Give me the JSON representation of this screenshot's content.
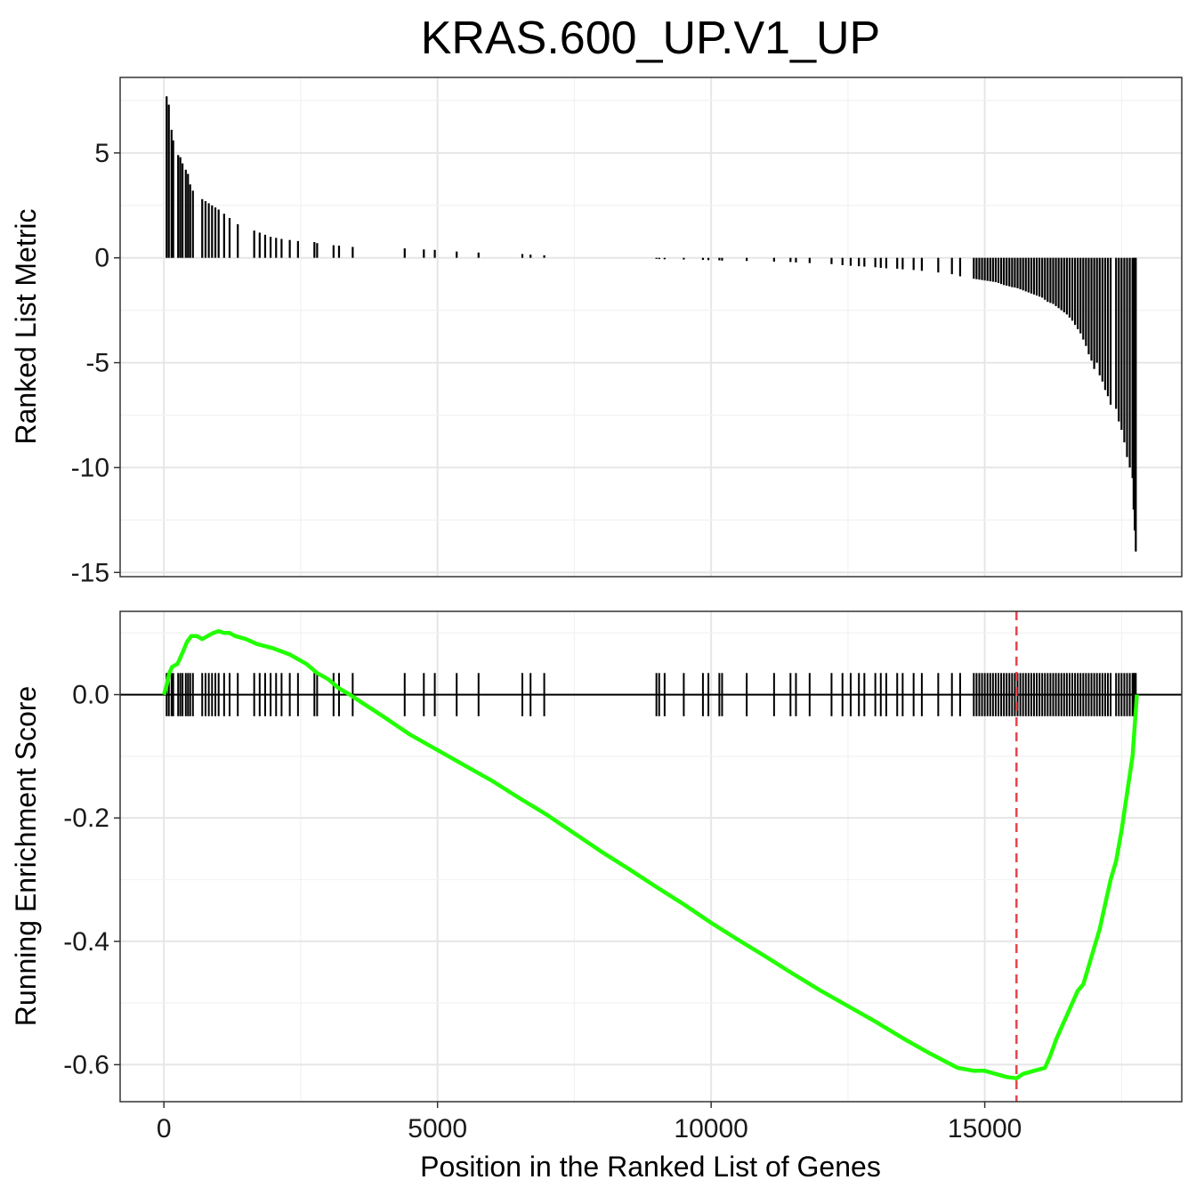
{
  "chart_data": {
    "type": "line",
    "title": "KRAS.600_UP.V1_UP",
    "xlabel": "Position in the Ranked List of Genes",
    "x_ticks": [
      0,
      5000,
      10000,
      15000
    ],
    "xlim": [
      -800,
      18600
    ],
    "grid": true,
    "panels": [
      {
        "name": "ranked_metric",
        "type": "bar",
        "ylabel": "Ranked List Metric",
        "ylim": [
          -15.2,
          8.6
        ],
        "y_ticks": [
          5,
          0,
          -5,
          -10,
          -15
        ],
        "bars": [
          [
            50,
            7.7
          ],
          [
            90,
            7.3
          ],
          [
            140,
            6.1
          ],
          [
            170,
            5.6
          ],
          [
            260,
            4.9
          ],
          [
            300,
            4.8
          ],
          [
            340,
            4.5
          ],
          [
            400,
            4.2
          ],
          [
            440,
            4.0
          ],
          [
            480,
            3.5
          ],
          [
            530,
            3.2
          ],
          [
            700,
            2.8
          ],
          [
            760,
            2.7
          ],
          [
            820,
            2.6
          ],
          [
            880,
            2.5
          ],
          [
            940,
            2.4
          ],
          [
            1000,
            2.3
          ],
          [
            1100,
            2.1
          ],
          [
            1200,
            1.9
          ],
          [
            1350,
            1.6
          ],
          [
            1650,
            1.3
          ],
          [
            1750,
            1.2
          ],
          [
            1850,
            1.1
          ],
          [
            1950,
            1.0
          ],
          [
            2050,
            0.95
          ],
          [
            2150,
            0.9
          ],
          [
            2300,
            0.85
          ],
          [
            2450,
            0.8
          ],
          [
            2750,
            0.75
          ],
          [
            2800,
            0.7
          ],
          [
            3100,
            0.6
          ],
          [
            3200,
            0.58
          ],
          [
            3450,
            0.52
          ],
          [
            4400,
            0.45
          ],
          [
            4750,
            0.4
          ],
          [
            4950,
            0.38
          ],
          [
            5350,
            0.3
          ],
          [
            5750,
            0.25
          ],
          [
            6550,
            0.18
          ],
          [
            6700,
            0.15
          ],
          [
            6950,
            0.12
          ],
          [
            9000,
            -0.05
          ],
          [
            9050,
            -0.06
          ],
          [
            9150,
            -0.07
          ],
          [
            9500,
            -0.08
          ],
          [
            9850,
            -0.1
          ],
          [
            9950,
            -0.11
          ],
          [
            10150,
            -0.12
          ],
          [
            10200,
            -0.13
          ],
          [
            10650,
            -0.15
          ],
          [
            11150,
            -0.18
          ],
          [
            11450,
            -0.2
          ],
          [
            11550,
            -0.22
          ],
          [
            11800,
            -0.25
          ],
          [
            12200,
            -0.3
          ],
          [
            12400,
            -0.35
          ],
          [
            12550,
            -0.38
          ],
          [
            12700,
            -0.4
          ],
          [
            12800,
            -0.42
          ],
          [
            13000,
            -0.45
          ],
          [
            13100,
            -0.48
          ],
          [
            13200,
            -0.5
          ],
          [
            13400,
            -0.52
          ],
          [
            13500,
            -0.55
          ],
          [
            13700,
            -0.58
          ],
          [
            13850,
            -0.62
          ],
          [
            14150,
            -0.7
          ],
          [
            14400,
            -0.78
          ],
          [
            14550,
            -0.88
          ],
          [
            14800,
            -1.0
          ],
          [
            14850,
            -1.02
          ],
          [
            14900,
            -1.04
          ],
          [
            14950,
            -1.06
          ],
          [
            15000,
            -1.08
          ],
          [
            15050,
            -1.1
          ],
          [
            15100,
            -1.12
          ],
          [
            15150,
            -1.14
          ],
          [
            15200,
            -1.16
          ],
          [
            15250,
            -1.2
          ],
          [
            15300,
            -1.25
          ],
          [
            15350,
            -1.3
          ],
          [
            15400,
            -1.33
          ],
          [
            15450,
            -1.36
          ],
          [
            15500,
            -1.4
          ],
          [
            15550,
            -1.42
          ],
          [
            15600,
            -1.45
          ],
          [
            15650,
            -1.5
          ],
          [
            15700,
            -1.55
          ],
          [
            15750,
            -1.6
          ],
          [
            15800,
            -1.65
          ],
          [
            15850,
            -1.7
          ],
          [
            15900,
            -1.75
          ],
          [
            15950,
            -1.8
          ],
          [
            16000,
            -1.85
          ],
          [
            16050,
            -1.9
          ],
          [
            16100,
            -2.0
          ],
          [
            16150,
            -2.1
          ],
          [
            16200,
            -2.15
          ],
          [
            16250,
            -2.2
          ],
          [
            16300,
            -2.3
          ],
          [
            16350,
            -2.4
          ],
          [
            16400,
            -2.5
          ],
          [
            16450,
            -2.6
          ],
          [
            16500,
            -2.7
          ],
          [
            16550,
            -2.85
          ],
          [
            16600,
            -3.0
          ],
          [
            16650,
            -3.2
          ],
          [
            16700,
            -3.4
          ],
          [
            16750,
            -3.6
          ],
          [
            16800,
            -3.9
          ],
          [
            16850,
            -4.2
          ],
          [
            16900,
            -4.6
          ],
          [
            16950,
            -4.9
          ],
          [
            17000,
            -5.3
          ],
          [
            17050,
            -5.0
          ],
          [
            17100,
            -5.6
          ],
          [
            17150,
            -5.9
          ],
          [
            17200,
            -6.3
          ],
          [
            17250,
            -6.6
          ],
          [
            17300,
            -7.0
          ],
          [
            17400,
            -7.2
          ],
          [
            17450,
            -7.8
          ],
          [
            17500,
            -8.2
          ],
          [
            17550,
            -8.8
          ],
          [
            17600,
            -9.5
          ],
          [
            17650,
            -10.0
          ],
          [
            17700,
            -10.5
          ],
          [
            17720,
            -12.0
          ],
          [
            17740,
            -13.0
          ],
          [
            17760,
            -14.0
          ]
        ]
      },
      {
        "name": "running_es",
        "type": "line",
        "ylabel": "Running Enrichment Score",
        "ylim": [
          -0.66,
          0.135
        ],
        "y_ticks": [
          0.0,
          -0.2,
          -0.4,
          -0.6
        ],
        "line_color": "#22ff00",
        "peak_position": 15580,
        "peak_line_color": "#e8434b",
        "running_es": [
          [
            0,
            0.0
          ],
          [
            50,
            0.015
          ],
          [
            100,
            0.035
          ],
          [
            150,
            0.045
          ],
          [
            250,
            0.05
          ],
          [
            350,
            0.07
          ],
          [
            420,
            0.085
          ],
          [
            500,
            0.095
          ],
          [
            600,
            0.095
          ],
          [
            700,
            0.09
          ],
          [
            800,
            0.095
          ],
          [
            900,
            0.1
          ],
          [
            1000,
            0.103
          ],
          [
            1100,
            0.1
          ],
          [
            1200,
            0.1
          ],
          [
            1300,
            0.095
          ],
          [
            1500,
            0.09
          ],
          [
            1700,
            0.082
          ],
          [
            2000,
            0.075
          ],
          [
            2300,
            0.065
          ],
          [
            2600,
            0.05
          ],
          [
            2800,
            0.035
          ],
          [
            3000,
            0.025
          ],
          [
            3200,
            0.01
          ],
          [
            3400,
            0.0
          ],
          [
            3600,
            -0.012
          ],
          [
            4000,
            -0.035
          ],
          [
            4500,
            -0.065
          ],
          [
            5000,
            -0.09
          ],
          [
            5500,
            -0.115
          ],
          [
            6000,
            -0.14
          ],
          [
            6500,
            -0.168
          ],
          [
            7000,
            -0.195
          ],
          [
            7500,
            -0.225
          ],
          [
            8000,
            -0.255
          ],
          [
            8500,
            -0.283
          ],
          [
            9000,
            -0.312
          ],
          [
            9500,
            -0.34
          ],
          [
            10000,
            -0.37
          ],
          [
            10500,
            -0.398
          ],
          [
            11000,
            -0.425
          ],
          [
            11500,
            -0.453
          ],
          [
            12000,
            -0.48
          ],
          [
            12500,
            -0.505
          ],
          [
            13000,
            -0.53
          ],
          [
            13500,
            -0.557
          ],
          [
            14000,
            -0.582
          ],
          [
            14500,
            -0.605
          ],
          [
            14800,
            -0.61
          ],
          [
            15000,
            -0.61
          ],
          [
            15200,
            -0.615
          ],
          [
            15400,
            -0.62
          ],
          [
            15580,
            -0.622
          ],
          [
            15700,
            -0.615
          ],
          [
            15900,
            -0.61
          ],
          [
            16100,
            -0.605
          ],
          [
            16200,
            -0.585
          ],
          [
            16300,
            -0.56
          ],
          [
            16400,
            -0.54
          ],
          [
            16500,
            -0.52
          ],
          [
            16600,
            -0.5
          ],
          [
            16700,
            -0.48
          ],
          [
            16800,
            -0.47
          ],
          [
            16900,
            -0.44
          ],
          [
            17000,
            -0.41
          ],
          [
            17100,
            -0.38
          ],
          [
            17200,
            -0.34
          ],
          [
            17300,
            -0.3
          ],
          [
            17400,
            -0.27
          ],
          [
            17500,
            -0.22
          ],
          [
            17600,
            -0.16
          ],
          [
            17700,
            -0.1
          ],
          [
            17780,
            0.0
          ]
        ],
        "hits": [
          50,
          90,
          140,
          170,
          260,
          300,
          340,
          400,
          440,
          480,
          530,
          700,
          760,
          820,
          880,
          940,
          1000,
          1100,
          1200,
          1350,
          1650,
          1750,
          1850,
          1950,
          2050,
          2150,
          2300,
          2450,
          2750,
          2800,
          3100,
          3200,
          3450,
          4400,
          4750,
          4950,
          5350,
          5750,
          6550,
          6700,
          6950,
          9000,
          9050,
          9150,
          9500,
          9850,
          9950,
          10150,
          10200,
          10650,
          11150,
          11450,
          11550,
          11800,
          12200,
          12400,
          12550,
          12700,
          12800,
          13000,
          13100,
          13200,
          13400,
          13500,
          13700,
          13850,
          14150,
          14400,
          14550,
          14800,
          14850,
          14900,
          14950,
          15000,
          15050,
          15100,
          15150,
          15200,
          15250,
          15300,
          15350,
          15400,
          15450,
          15500,
          15550,
          15600,
          15650,
          15700,
          15750,
          15800,
          15850,
          15900,
          15950,
          16000,
          16050,
          16100,
          16150,
          16200,
          16250,
          16300,
          16350,
          16400,
          16450,
          16500,
          16550,
          16600,
          16650,
          16700,
          16750,
          16800,
          16850,
          16900,
          16950,
          17000,
          17050,
          17100,
          17150,
          17200,
          17250,
          17300,
          17400,
          17450,
          17500,
          17550,
          17600,
          17650,
          17700,
          17720,
          17740,
          17760
        ]
      }
    ]
  }
}
